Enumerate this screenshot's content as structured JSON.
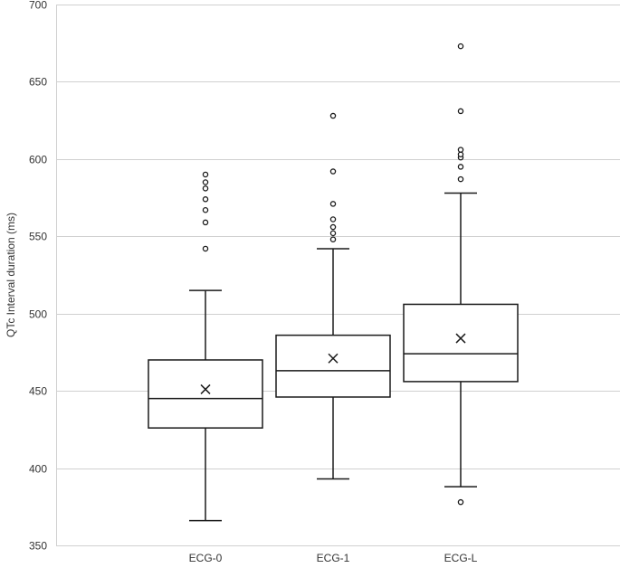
{
  "chart_data": {
    "type": "boxplot",
    "ylabel": "QTc Interval duration (ms)",
    "xlabel": "",
    "ylim": [
      350,
      700
    ],
    "yticks": [
      350,
      400,
      450,
      500,
      550,
      600,
      650,
      700
    ],
    "grid": true,
    "categories": [
      "ECG-0",
      "ECG-1",
      "ECG-L"
    ],
    "boxes": [
      {
        "category": "ECG-0",
        "min": 366,
        "q1": 426,
        "median": 445,
        "q3": 470,
        "max": 515,
        "mean": 451,
        "outliers": [
          542,
          559,
          567,
          574,
          581,
          585,
          590
        ]
      },
      {
        "category": "ECG-1",
        "min": 393,
        "q1": 446,
        "median": 463,
        "q3": 486,
        "max": 542,
        "mean": 471,
        "outliers": [
          548,
          552,
          556,
          561,
          571,
          592,
          628
        ]
      },
      {
        "category": "ECG-L",
        "min": 388,
        "q1": 456,
        "median": 474,
        "q3": 506,
        "max": 578,
        "mean": 484,
        "outliers": [
          378,
          587,
          595,
          601,
          603,
          606,
          631,
          673
        ]
      }
    ]
  }
}
